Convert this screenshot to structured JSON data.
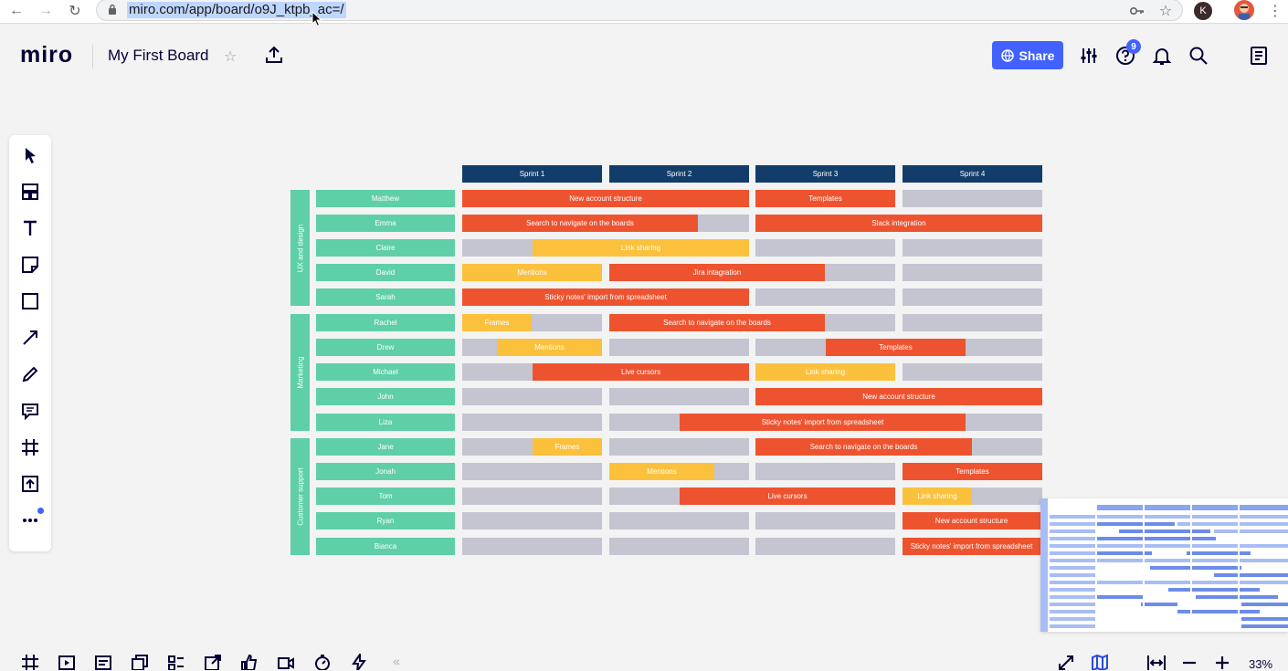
{
  "browser": {
    "url": "miro.com/app/board/o9J_ktpb_ac=/",
    "profile_initial": "K"
  },
  "header": {
    "logo": "miro",
    "board_title": "My First Board",
    "share_label": "Share",
    "notification_count": "9"
  },
  "toolbar": {
    "tools": [
      "select-tool",
      "templates-tool",
      "text-tool",
      "sticky-note-tool",
      "shape-tool",
      "line-tool",
      "pen-tool",
      "comment-tool",
      "frame-tool",
      "upload-tool",
      "more-tools"
    ]
  },
  "board": {
    "sprints": [
      "Sprint 1",
      "Sprint 2",
      "Sprint 3",
      "Sprint 4"
    ],
    "groups": [
      "UX and design",
      "Marketing",
      "Customer support"
    ],
    "people": [
      "Matthew",
      "Emma",
      "Claire",
      "David",
      "Sarah",
      "Rachel",
      "Drew",
      "Michael",
      "John",
      "Liza",
      "Jane",
      "Jonah",
      "Tom",
      "Ryan",
      "Bianca"
    ],
    "tasks": [
      "New account structure",
      "Templates",
      "Search to navigate on the boards",
      "Slack integration",
      "Link sharing",
      "Mentions",
      "Jira intagration",
      "Sticky notes' import from spreadsheet",
      "Frames",
      "Search to navigate on the boards",
      "Mentions",
      "Templates",
      "Live cursors",
      "Link sharing",
      "New account structure",
      "Sticky notes' import from spreadsheet",
      "Frames",
      "Search to navigate on the boards",
      "Mentions",
      "Templates",
      "Live cursors",
      "Link sharing",
      "New account structure",
      "Sticky notes' import from spreadsheet"
    ]
  },
  "bottom": {
    "zoom": "33%"
  },
  "colors": {
    "accent": "#4262ff",
    "sprint_header": "#123c69",
    "person": "#5fcfa8",
    "task_red": "#ee5330",
    "task_yellow": "#fbc13c",
    "empty_cell": "#c4c5d1"
  }
}
